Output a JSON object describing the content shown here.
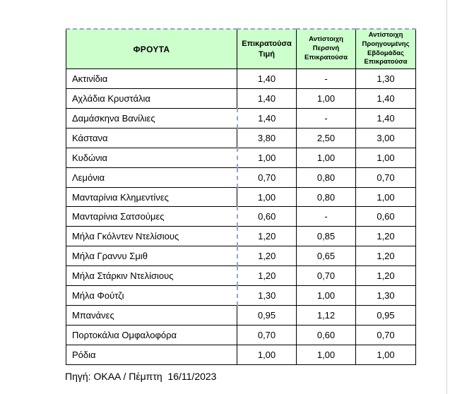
{
  "colors": {
    "header_background": "#ccffcc",
    "page_break_dash": "#95a3c4",
    "table_border": "#000000",
    "window_edge_line": "#d6d6d6"
  },
  "table": {
    "columns": [
      "ΦΡΟΥΤΑ",
      "Επικρατούσα\nΤιμή",
      "Αντίστοιχη\nΠερσινή\nΕπικρατούσα",
      "Αντίστοιχη\nΠροηγουμένης\nΕβδομάδας\nΕπικρατούσα"
    ],
    "rows": [
      {
        "name": "Ακτινίδια",
        "values": [
          "1,40",
          "-",
          "1,30"
        ],
        "divider": "solid"
      },
      {
        "name": "Αχλάδια Κρυστάλια",
        "values": [
          "1,40",
          "1,00",
          "1,40"
        ],
        "divider": "solid"
      },
      {
        "name": "Δαμάσκηνα Βανίλιες",
        "values": [
          "1,40",
          "-",
          "1,40"
        ],
        "divider": "dashed"
      },
      {
        "name": "Κάστανα",
        "values": [
          "3,80",
          "2,50",
          "3,00"
        ],
        "divider": "solid"
      },
      {
        "name": "Κυδώνια",
        "values": [
          "1,00",
          "1,00",
          "1,00"
        ],
        "divider": "dashed"
      },
      {
        "name": "Λεμόνια",
        "values": [
          "0,70",
          "0,80",
          "0,70"
        ],
        "divider": "dashed"
      },
      {
        "name": "Μανταρίνια Κλημεντίνες",
        "values": [
          "1,00",
          "0,80",
          "1,00"
        ],
        "divider": "solid"
      },
      {
        "name": "Μανταρίνια Σατσούμες",
        "values": [
          "0,60",
          "-",
          "0,60"
        ],
        "divider": "dashed"
      },
      {
        "name": "Μήλα Γκόλντεν Ντελίσιους",
        "values": [
          "1,20",
          "0,85",
          "1,20"
        ],
        "divider": "dashed"
      },
      {
        "name": "Μήλα Γραννυ Σμιθ",
        "values": [
          "1,20",
          "0,65",
          "1,20"
        ],
        "divider": "dashed"
      },
      {
        "name": "Μήλα Στάρκιν Ντελίσιους",
        "values": [
          "1,20",
          "0,70",
          "1,20"
        ],
        "divider": "dashed"
      },
      {
        "name": "Μήλα Φούτζι",
        "values": [
          "1,30",
          "1,00",
          "1,30"
        ],
        "divider": "dashed"
      },
      {
        "name": "Μπανάνες",
        "values": [
          "0,95",
          "1,12",
          "0,95"
        ],
        "divider": "solid"
      },
      {
        "name": "Πορτοκάλια Ομφαλοφόρα",
        "values": [
          "0,70",
          "0,60",
          "0,70"
        ],
        "divider": "solid"
      },
      {
        "name": "Ρόδια",
        "values": [
          "1,00",
          "1,00",
          "1,00"
        ],
        "divider": "solid"
      }
    ]
  },
  "footer": {
    "source": "Πηγή: ΟΚΑΑ / Πέμπτη  16/11/2023"
  }
}
